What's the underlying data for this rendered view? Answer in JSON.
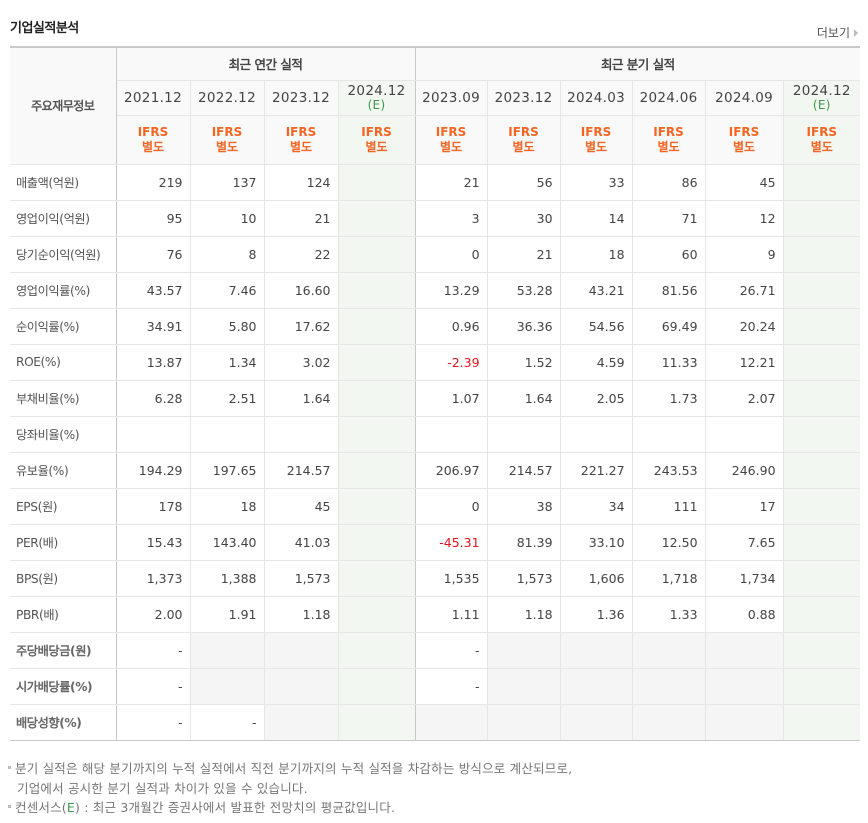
{
  "header": {
    "title": "기업실적분석",
    "more_label": "더보기"
  },
  "table": {
    "side_header": "주요재무정보",
    "groups": {
      "annual": "최근 연간 실적",
      "quarterly": "최근 분기 실적"
    },
    "columns": [
      {
        "date": "2021.12",
        "est": "",
        "basis1": "IFRS",
        "basis2": "별도"
      },
      {
        "date": "2022.12",
        "est": "",
        "basis1": "IFRS",
        "basis2": "별도"
      },
      {
        "date": "2023.12",
        "est": "",
        "basis1": "IFRS",
        "basis2": "별도"
      },
      {
        "date": "2024.12",
        "est": "(E)",
        "basis1": "IFRS",
        "basis2": "별도"
      },
      {
        "date": "2023.09",
        "est": "",
        "basis1": "IFRS",
        "basis2": "별도"
      },
      {
        "date": "2023.12",
        "est": "",
        "basis1": "IFRS",
        "basis2": "별도"
      },
      {
        "date": "2024.03",
        "est": "",
        "basis1": "IFRS",
        "basis2": "별도"
      },
      {
        "date": "2024.06",
        "est": "",
        "basis1": "IFRS",
        "basis2": "별도"
      },
      {
        "date": "2024.09",
        "est": "",
        "basis1": "IFRS",
        "basis2": "별도"
      },
      {
        "date": "2024.12",
        "est": "(E)",
        "basis1": "IFRS",
        "basis2": "별도"
      }
    ],
    "rows": [
      {
        "label": "매출액(억원)",
        "values": [
          "219",
          "137",
          "124",
          "",
          "21",
          "56",
          "33",
          "86",
          "45",
          ""
        ]
      },
      {
        "label": "영업이익(억원)",
        "values": [
          "95",
          "10",
          "21",
          "",
          "3",
          "30",
          "14",
          "71",
          "12",
          ""
        ]
      },
      {
        "label": "당기순이익(억원)",
        "values": [
          "76",
          "8",
          "22",
          "",
          "0",
          "21",
          "18",
          "60",
          "9",
          ""
        ]
      },
      {
        "label": "영업이익률(%)",
        "values": [
          "43.57",
          "7.46",
          "16.60",
          "",
          "13.29",
          "53.28",
          "43.21",
          "81.56",
          "26.71",
          ""
        ]
      },
      {
        "label": "순이익률(%)",
        "values": [
          "34.91",
          "5.80",
          "17.62",
          "",
          "0.96",
          "36.36",
          "54.56",
          "69.49",
          "20.24",
          ""
        ]
      },
      {
        "label": "ROE(%)",
        "values": [
          "13.87",
          "1.34",
          "3.02",
          "",
          "-2.39",
          "1.52",
          "4.59",
          "11.33",
          "12.21",
          ""
        ]
      },
      {
        "label": "부채비율(%)",
        "values": [
          "6.28",
          "2.51",
          "1.64",
          "",
          "1.07",
          "1.64",
          "2.05",
          "1.73",
          "2.07",
          ""
        ]
      },
      {
        "label": "당좌비율(%)",
        "values": [
          "",
          "",
          "",
          "",
          "",
          "",
          "",
          "",
          "",
          ""
        ]
      },
      {
        "label": "유보율(%)",
        "values": [
          "194.29",
          "197.65",
          "214.57",
          "",
          "206.97",
          "214.57",
          "221.27",
          "243.53",
          "246.90",
          ""
        ]
      },
      {
        "label": "EPS(원)",
        "values": [
          "178",
          "18",
          "45",
          "",
          "0",
          "38",
          "34",
          "111",
          "17",
          ""
        ]
      },
      {
        "label": "PER(배)",
        "values": [
          "15.43",
          "143.40",
          "41.03",
          "",
          "-45.31",
          "81.39",
          "33.10",
          "12.50",
          "7.65",
          ""
        ]
      },
      {
        "label": "BPS(원)",
        "values": [
          "1,373",
          "1,388",
          "1,573",
          "",
          "1,535",
          "1,573",
          "1,606",
          "1,718",
          "1,734",
          ""
        ]
      },
      {
        "label": "PBR(배)",
        "values": [
          "2.00",
          "1.91",
          "1.18",
          "",
          "1.11",
          "1.18",
          "1.36",
          "1.33",
          "0.88",
          ""
        ]
      },
      {
        "label": "주당배당금(원)",
        "values": [
          "-",
          "",
          "",
          "",
          "-",
          "",
          "",
          "",
          "",
          ""
        ]
      },
      {
        "label": "시가배당률(%)",
        "values": [
          "-",
          "",
          "",
          "",
          "-",
          "",
          "",
          "",
          "",
          ""
        ]
      },
      {
        "label": "배당성향(%)",
        "values": [
          "-",
          "-",
          "",
          "",
          "",
          "",
          "",
          "",
          "",
          ""
        ]
      }
    ]
  },
  "notes": {
    "line1": "분기 실적은 해당 분기까지의 누적 실적에서 직전 분기까지의 누적 실적을 차감하는 방식으로 계산되므로,",
    "line2": "기업에서 공시한 분기 실적과 차이가 있을 수 있습니다.",
    "line3_prefix": "컨센서스(",
    "line3_e": "E",
    "line3_suffix": ") : 최근 3개월간 증권사에서 발표한 전망치의 평균값입니다."
  },
  "colors": {
    "ifrs_orange": "#f26522",
    "estimate_green": "#3d9a4a",
    "estimate_bg": "#f2f7f2",
    "negative_red": "#e3141c"
  }
}
